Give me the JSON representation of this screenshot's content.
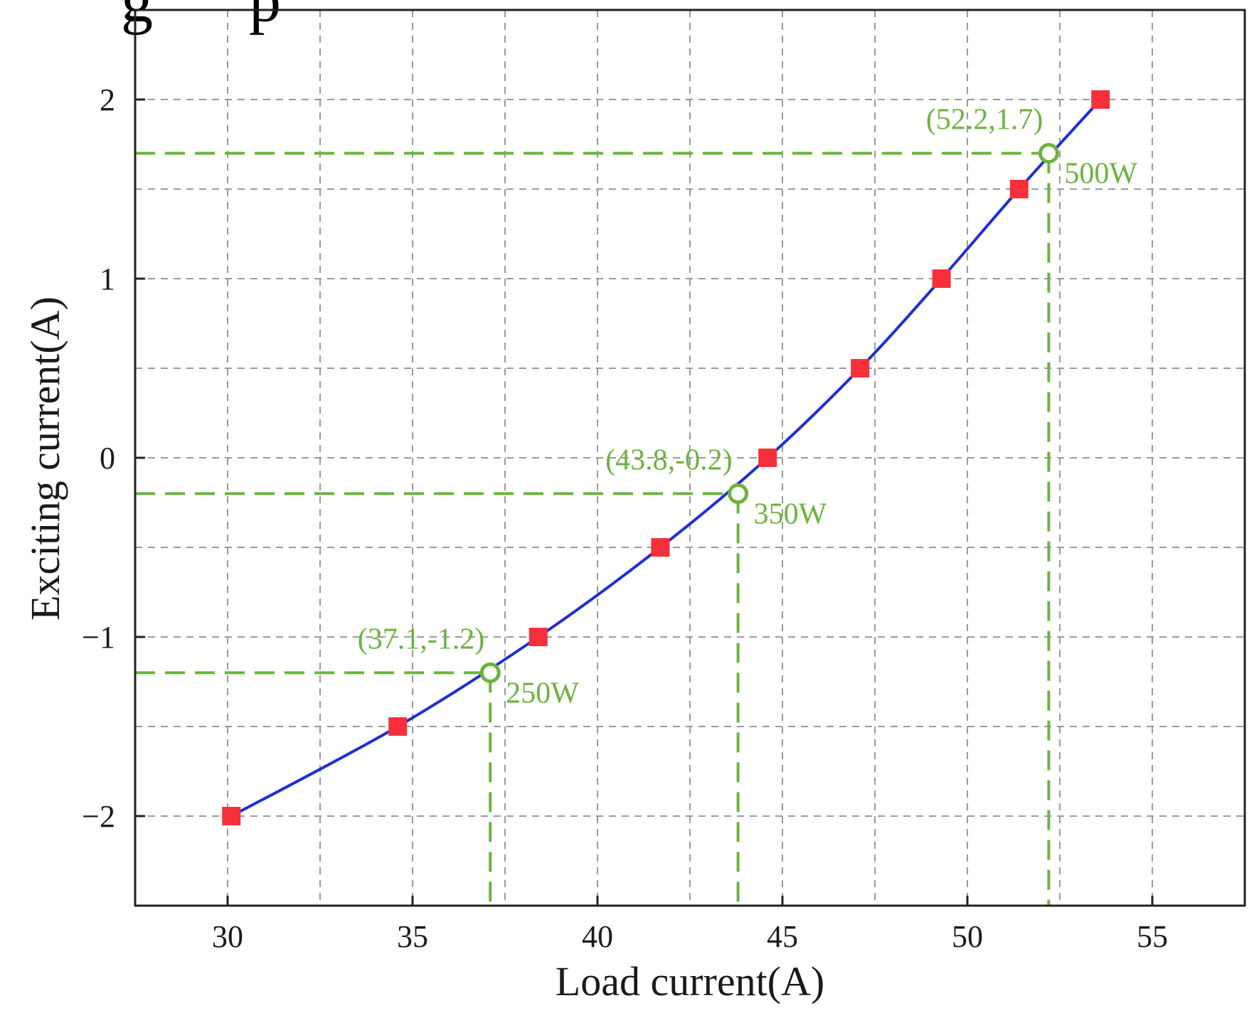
{
  "chart_data": {
    "type": "line",
    "xlabel": "Load current(A)",
    "ylabel": "Exciting current(A)",
    "xlim": [
      27.5,
      57.5
    ],
    "ylim": [
      -2.5,
      2.5
    ],
    "x_ticks": [
      30,
      35,
      40,
      45,
      50,
      55
    ],
    "y_ticks": [
      -2,
      -1,
      0,
      1,
      2
    ],
    "x_tick_labels": [
      "30",
      "35",
      "40",
      "45",
      "50",
      "55"
    ],
    "y_tick_labels": [
      "−2",
      "−1",
      "0",
      "1",
      "2"
    ],
    "grid": true,
    "grid_x": [
      30,
      32.5,
      35,
      37.5,
      40,
      42.5,
      45,
      47.5,
      50,
      52.5,
      55
    ],
    "grid_y": [
      -2,
      -1.5,
      -1,
      -0.5,
      0,
      0.5,
      1,
      1.5,
      2
    ],
    "series": [
      {
        "color": "#1f2fd0",
        "marker_color": "#f5303a",
        "marker": "square",
        "points": [
          {
            "x": 30.1,
            "y": -2.0
          },
          {
            "x": 34.6,
            "y": -1.5
          },
          {
            "x": 38.4,
            "y": -1.0
          },
          {
            "x": 41.7,
            "y": -0.5
          },
          {
            "x": 44.6,
            "y": 0.0
          },
          {
            "x": 47.1,
            "y": 0.5
          },
          {
            "x": 49.3,
            "y": 1.0
          },
          {
            "x": 51.4,
            "y": 1.5
          },
          {
            "x": 53.6,
            "y": 2.0
          }
        ]
      }
    ],
    "annotations": [
      {
        "x": 37.1,
        "y": -1.2,
        "coord_label": "(37.1,-1.2)",
        "power_label": "250W"
      },
      {
        "x": 43.8,
        "y": -0.2,
        "coord_label": "(43.8,-0.2)",
        "power_label": "350W"
      },
      {
        "x": 52.2,
        "y": 1.7,
        "coord_label": "(52.2,1.7)",
        "power_label": "500W"
      }
    ],
    "annotation_color": "#6db33f"
  },
  "cropped_title_fragment": "g      p"
}
